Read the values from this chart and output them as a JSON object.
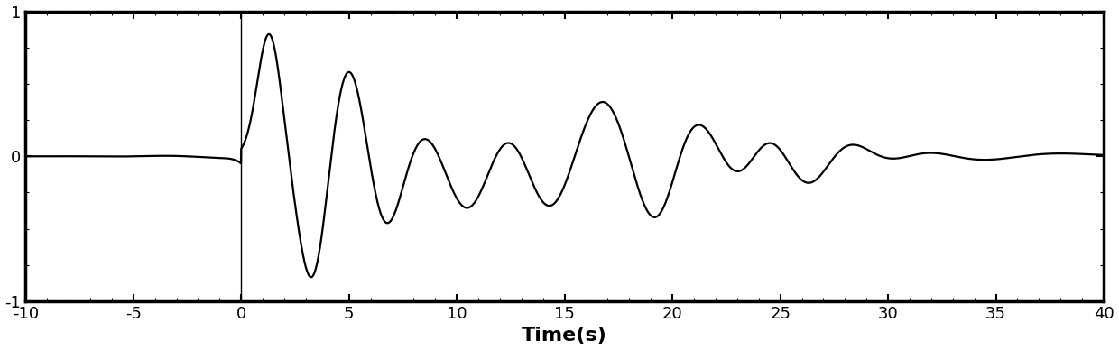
{
  "xlim": [
    -10,
    40
  ],
  "ylim": [
    -1,
    1
  ],
  "xticks": [
    -10,
    -5,
    0,
    5,
    10,
    15,
    20,
    25,
    30,
    35,
    40
  ],
  "yticks": [
    -1,
    0,
    1
  ],
  "xlabel": "Time(s)",
  "xlabel_fontsize": 16,
  "xlabel_fontweight": "bold",
  "vline_x": 0,
  "line_color": "#000000",
  "line_width": 1.6,
  "background_color": "#ffffff",
  "tick_fontsize": 13,
  "figsize": [
    12.4,
    3.88
  ],
  "dpi": 100
}
